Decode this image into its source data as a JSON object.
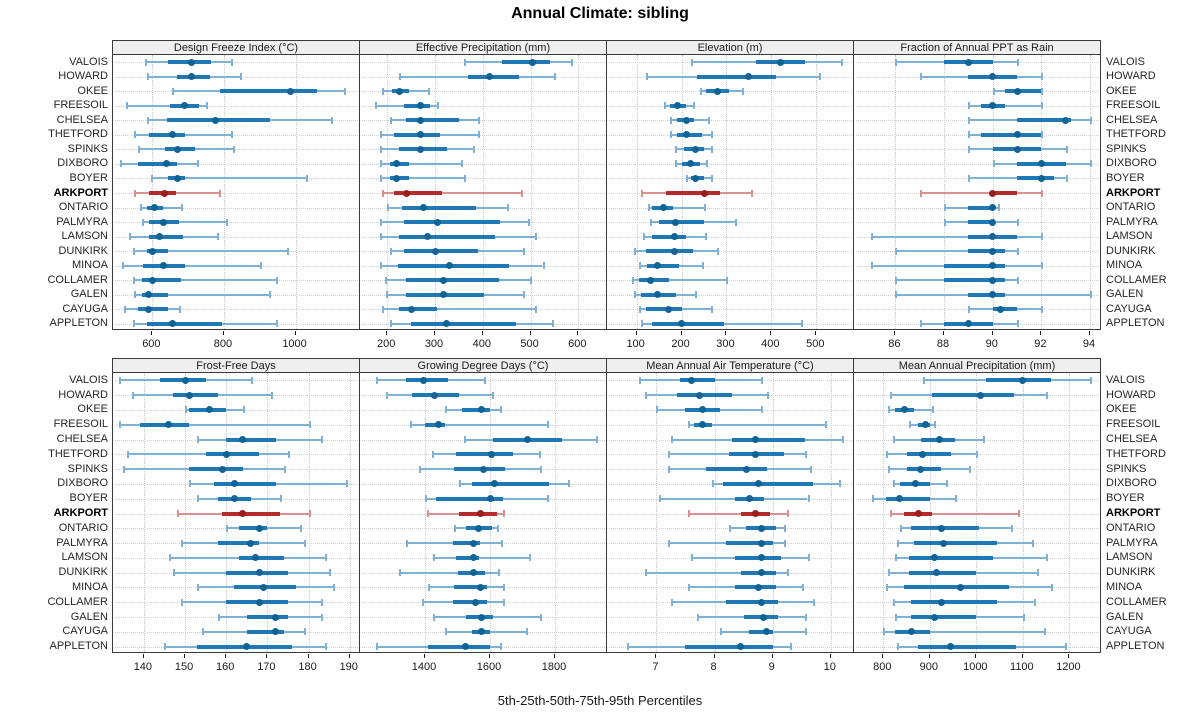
{
  "title": "Annual Climate: sibling",
  "caption": "5th-25th-50th-75th-95th Percentiles",
  "sites": [
    "VALOIS",
    "HOWARD",
    "OKEE",
    "FREESOIL",
    "CHELSEA",
    "THETFORD",
    "SPINKS",
    "DIXBORO",
    "BOYER",
    "ARKPORT",
    "ONTARIO",
    "PALMYRA",
    "LAMSON",
    "DUNKIRK",
    "MINOA",
    "COLLAMER",
    "GALEN",
    "CAYUGA",
    "APPLETON"
  ],
  "highlight_site": "ARKPORT",
  "colors": {
    "blue_line": "#7FB1D6",
    "blue_box": "#1F77B4",
    "blue_dot": "#0D6395",
    "red_line": "#D99090",
    "red_box": "#B32B2B",
    "red_dot": "#971E1E",
    "grid": "#c9c9c9",
    "header_bg": "#efefef",
    "border": "#3a3a3a",
    "text": "#1a1a1a"
  },
  "chart_data": {
    "type": "dot-whisker",
    "percentiles": [
      5,
      25,
      50,
      75,
      95
    ],
    "panels": [
      {
        "title": "Design Freeze Index (°C)",
        "row": 0,
        "xlim": [
          490,
          1180
        ],
        "ticks": [
          600,
          800,
          1000
        ],
        "values": [
          [
            580,
            645,
            710,
            765,
            820
          ],
          [
            585,
            670,
            710,
            760,
            845
          ],
          [
            655,
            790,
            985,
            1060,
            1135
          ],
          [
            525,
            650,
            690,
            730,
            750
          ],
          [
            585,
            640,
            775,
            930,
            1100
          ],
          [
            550,
            590,
            655,
            690,
            820
          ],
          [
            560,
            635,
            670,
            720,
            825
          ],
          [
            510,
            560,
            640,
            670,
            725
          ],
          [
            595,
            645,
            670,
            690,
            1030
          ],
          [
            550,
            590,
            635,
            665,
            785
          ],
          [
            565,
            585,
            605,
            630,
            680
          ],
          [
            570,
            590,
            630,
            675,
            805
          ],
          [
            535,
            590,
            620,
            685,
            780
          ],
          [
            545,
            585,
            600,
            645,
            975
          ],
          [
            515,
            575,
            630,
            690,
            900
          ],
          [
            545,
            570,
            600,
            680,
            945
          ],
          [
            550,
            570,
            590,
            645,
            925
          ],
          [
            520,
            560,
            590,
            645,
            675
          ],
          [
            545,
            585,
            655,
            795,
            945
          ]
        ]
      },
      {
        "title": "Effective Precipitation (mm)",
        "row": 0,
        "xlim": [
          143,
          660
        ],
        "ticks": [
          200,
          300,
          400,
          500,
          600
        ],
        "values": [
          [
            360,
            440,
            505,
            540,
            585
          ],
          [
            225,
            370,
            415,
            475,
            550
          ],
          [
            190,
            210,
            225,
            245,
            285
          ],
          [
            175,
            235,
            270,
            290,
            305
          ],
          [
            205,
            240,
            270,
            350,
            390
          ],
          [
            185,
            215,
            270,
            310,
            390
          ],
          [
            185,
            225,
            270,
            325,
            380
          ],
          [
            185,
            205,
            220,
            245,
            355
          ],
          [
            185,
            205,
            220,
            245,
            360
          ],
          [
            190,
            215,
            240,
            315,
            480
          ],
          [
            200,
            230,
            275,
            385,
            450
          ],
          [
            185,
            235,
            305,
            435,
            495
          ],
          [
            185,
            225,
            285,
            425,
            510
          ],
          [
            205,
            235,
            300,
            390,
            485
          ],
          [
            185,
            222,
            330,
            455,
            525
          ],
          [
            195,
            240,
            318,
            434,
            498
          ],
          [
            198,
            240,
            318,
            403,
            485
          ],
          [
            190,
            225,
            250,
            305,
            510
          ],
          [
            205,
            250,
            325,
            470,
            545
          ]
        ]
      },
      {
        "title": "Elevation (m)",
        "row": 0,
        "xlim": [
          34,
          584
        ],
        "ticks": [
          100,
          200,
          300,
          400,
          500
        ],
        "values": [
          [
            220,
            365,
            420,
            475,
            555
          ],
          [
            120,
            235,
            350,
            410,
            505
          ],
          [
            240,
            255,
            280,
            305,
            335
          ],
          [
            160,
            175,
            190,
            210,
            225
          ],
          [
            175,
            190,
            210,
            227,
            260
          ],
          [
            175,
            190,
            210,
            245,
            265
          ],
          [
            185,
            205,
            230,
            250,
            265
          ],
          [
            185,
            200,
            220,
            240,
            255
          ],
          [
            210,
            220,
            230,
            250,
            265
          ],
          [
            110,
            165,
            250,
            285,
            355
          ],
          [
            125,
            135,
            160,
            180,
            250
          ],
          [
            130,
            150,
            187,
            250,
            320
          ],
          [
            115,
            135,
            185,
            210,
            253
          ],
          [
            95,
            120,
            185,
            225,
            280
          ],
          [
            105,
            122,
            147,
            195,
            245
          ],
          [
            90,
            105,
            130,
            173,
            300
          ],
          [
            95,
            110,
            147,
            187,
            230
          ],
          [
            105,
            120,
            170,
            200,
            265
          ],
          [
            110,
            135,
            200,
            295,
            465
          ]
        ]
      },
      {
        "title": "Fraction of Annual PPT as Rain",
        "row": 0,
        "xlim": [
          84.3,
          94.45
        ],
        "ticks": [
          86,
          88,
          90,
          92,
          94
        ],
        "values": [
          [
            86,
            88,
            89,
            90,
            91
          ],
          [
            87,
            89,
            90,
            91,
            92
          ],
          [
            90,
            90.5,
            91,
            92,
            92
          ],
          [
            89,
            89.5,
            90,
            90.5,
            92
          ],
          [
            89,
            91,
            93,
            93.2,
            94
          ],
          [
            89,
            89.5,
            91,
            92,
            92
          ],
          [
            89,
            90,
            91,
            92,
            93
          ],
          [
            90,
            91,
            92,
            93,
            94
          ],
          [
            89,
            91,
            92,
            92.5,
            93
          ],
          [
            87,
            90,
            90,
            91,
            92
          ],
          [
            88,
            89,
            90,
            90,
            90.2
          ],
          [
            88,
            89,
            90,
            90,
            91
          ],
          [
            85,
            89,
            90,
            91,
            92
          ],
          [
            86,
            89,
            90,
            90.5,
            91
          ],
          [
            85,
            88,
            90,
            90.5,
            92
          ],
          [
            86,
            88,
            90,
            90.5,
            91
          ],
          [
            86,
            89,
            90,
            90.5,
            94
          ],
          [
            89,
            90,
            90.3,
            91,
            92
          ],
          [
            87,
            88,
            89,
            90,
            91
          ]
        ]
      },
      {
        "title": "Frost-Free Days",
        "row": 1,
        "xlim": [
          132.5,
          192.5
        ],
        "ticks": [
          140,
          150,
          160,
          170,
          180,
          190
        ],
        "values": [
          [
            134,
            144,
            150,
            155,
            166
          ],
          [
            137,
            147,
            151,
            158,
            171
          ],
          [
            150,
            151,
            156,
            160,
            164
          ],
          [
            134,
            139,
            146,
            151,
            180
          ],
          [
            153,
            160,
            164,
            172,
            183
          ],
          [
            136,
            155,
            160,
            168,
            175
          ],
          [
            135,
            151,
            159,
            164,
            174
          ],
          [
            151,
            157,
            162,
            172,
            189
          ],
          [
            153,
            158,
            162,
            166,
            173
          ],
          [
            148,
            159,
            164,
            173,
            180
          ],
          [
            160,
            163,
            168,
            170,
            178
          ],
          [
            149,
            158,
            166,
            168,
            179
          ],
          [
            146,
            163,
            167,
            174,
            184
          ],
          [
            147,
            160,
            168,
            175,
            185
          ],
          [
            153,
            162,
            169,
            177,
            186
          ],
          [
            149,
            160,
            168,
            175,
            183
          ],
          [
            158,
            165,
            172,
            175,
            183
          ],
          [
            154,
            165,
            172,
            174,
            179
          ],
          [
            145,
            153,
            165,
            176,
            184
          ]
        ]
      },
      {
        "title": "Growing Degree Days (°C)",
        "row": 1,
        "xlim": [
          1200,
          1960
        ],
        "ticks": [
          1400,
          1600,
          1800
        ],
        "values": [
          [
            1250,
            1340,
            1395,
            1470,
            1580
          ],
          [
            1280,
            1360,
            1430,
            1505,
            1605
          ],
          [
            1460,
            1515,
            1575,
            1600,
            1630
          ],
          [
            1355,
            1400,
            1440,
            1460,
            1775
          ],
          [
            1520,
            1610,
            1715,
            1820,
            1925
          ],
          [
            1420,
            1495,
            1605,
            1670,
            1750
          ],
          [
            1380,
            1490,
            1580,
            1645,
            1755
          ],
          [
            1505,
            1545,
            1615,
            1780,
            1840
          ],
          [
            1400,
            1435,
            1600,
            1640,
            1775
          ],
          [
            1405,
            1505,
            1570,
            1620,
            1640
          ],
          [
            1490,
            1525,
            1565,
            1605,
            1620
          ],
          [
            1340,
            1485,
            1550,
            1570,
            1635
          ],
          [
            1425,
            1495,
            1550,
            1565,
            1720
          ],
          [
            1320,
            1500,
            1550,
            1585,
            1625
          ],
          [
            1410,
            1490,
            1570,
            1590,
            1640
          ],
          [
            1390,
            1485,
            1555,
            1590,
            1640
          ],
          [
            1425,
            1525,
            1575,
            1610,
            1755
          ],
          [
            1460,
            1545,
            1575,
            1600,
            1710
          ],
          [
            1250,
            1410,
            1525,
            1600,
            1630
          ]
        ]
      },
      {
        "title": "Mean Annual Air Temperature (°C)",
        "row": 1,
        "xlim": [
          6.15,
          10.4
        ],
        "ticks": [
          7,
          8,
          9,
          10
        ],
        "values": [
          [
            6.7,
            7.4,
            7.6,
            8.0,
            8.8
          ],
          [
            6.8,
            7.35,
            7.75,
            8.3,
            8.9
          ],
          [
            7.0,
            7.5,
            7.8,
            8.1,
            8.8
          ],
          [
            7.55,
            7.65,
            7.8,
            7.95,
            9.9
          ],
          [
            7.25,
            8.3,
            8.7,
            9.55,
            10.2
          ],
          [
            7.2,
            8.25,
            8.7,
            9.2,
            9.55
          ],
          [
            7.2,
            7.85,
            8.55,
            8.9,
            9.65
          ],
          [
            7.95,
            8.15,
            8.75,
            9.7,
            10.15
          ],
          [
            7.05,
            8.35,
            8.6,
            8.85,
            9.6
          ],
          [
            7.55,
            8.45,
            8.7,
            8.95,
            9.25
          ],
          [
            8.25,
            8.55,
            8.8,
            9.05,
            9.2
          ],
          [
            7.2,
            8.2,
            8.8,
            9.0,
            9.2
          ],
          [
            7.6,
            8.35,
            8.8,
            9.15,
            9.6
          ],
          [
            6.8,
            8.45,
            8.8,
            9.05,
            9.25
          ],
          [
            7.55,
            8.35,
            8.75,
            9.05,
            9.5
          ],
          [
            7.25,
            8.2,
            8.8,
            9.1,
            9.7
          ],
          [
            7.7,
            8.5,
            8.85,
            9.1,
            9.55
          ],
          [
            8.1,
            8.6,
            8.9,
            9.0,
            9.55
          ],
          [
            6.5,
            7.5,
            8.45,
            9.0,
            9.3
          ]
        ]
      },
      {
        "title": "Mean Annual Precipitation (mm)",
        "row": 1,
        "xlim": [
          737,
          1268
        ],
        "ticks": [
          800,
          900,
          1000,
          1100,
          1200
        ],
        "values": [
          [
            885,
            1020,
            1100,
            1160,
            1245
          ],
          [
            815,
            905,
            1010,
            1080,
            1150
          ],
          [
            810,
            825,
            845,
            865,
            905
          ],
          [
            855,
            875,
            890,
            900,
            910
          ],
          [
            820,
            880,
            920,
            955,
            1015
          ],
          [
            805,
            850,
            885,
            945,
            1000
          ],
          [
            810,
            850,
            880,
            925,
            985
          ],
          [
            820,
            835,
            870,
            900,
            935
          ],
          [
            775,
            805,
            835,
            900,
            955
          ],
          [
            815,
            845,
            875,
            905,
            1090
          ],
          [
            835,
            860,
            925,
            1005,
            1075
          ],
          [
            830,
            865,
            930,
            1045,
            1120
          ],
          [
            825,
            855,
            910,
            1035,
            1150
          ],
          [
            810,
            855,
            915,
            1000,
            1130
          ],
          [
            805,
            845,
            965,
            1070,
            1160
          ],
          [
            820,
            860,
            925,
            1045,
            1125
          ],
          [
            825,
            860,
            910,
            1000,
            1100
          ],
          [
            800,
            825,
            860,
            900,
            1145
          ],
          [
            830,
            875,
            945,
            1085,
            1190
          ]
        ]
      }
    ]
  }
}
